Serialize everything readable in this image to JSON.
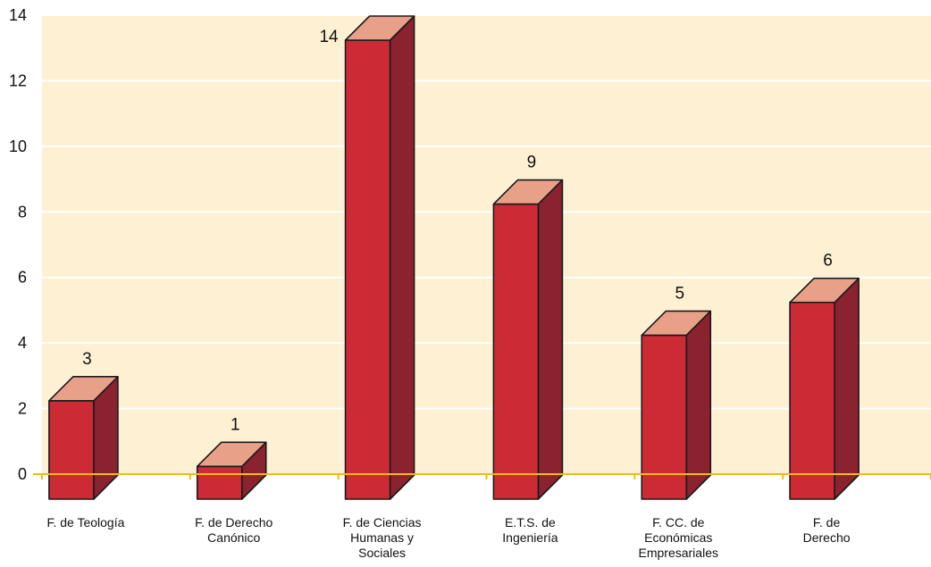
{
  "chart_data": {
    "type": "bar",
    "categories": [
      [
        "F. de Teología"
      ],
      [
        "F. de Derecho",
        "Canónico"
      ],
      [
        "F. de Ciencias",
        "Humanas y",
        "Sociales"
      ],
      [
        "E.T.S. de",
        "Ingeniería"
      ],
      [
        "F. CC. de",
        "Económicas",
        "Empresariales"
      ],
      [
        "F. de",
        "Derecho"
      ]
    ],
    "values": [
      3,
      1,
      14,
      9,
      5,
      6
    ],
    "data_labels": [
      "3",
      "1",
      "14",
      "9",
      "5",
      "6"
    ],
    "ylim": [
      0,
      14
    ],
    "yticks": [
      "0",
      "2",
      "4",
      "6",
      "8",
      "10",
      "12",
      "14"
    ],
    "grid": true,
    "colors": {
      "plot_background": "#fdf0d3",
      "axis_line": "#f2b81f",
      "gridline": "#ffffff",
      "bar_front": "#cc2b36",
      "bar_top": "#e8a088",
      "bar_side": "#8a2230",
      "bar_outline": "#1a1a1a"
    }
  }
}
